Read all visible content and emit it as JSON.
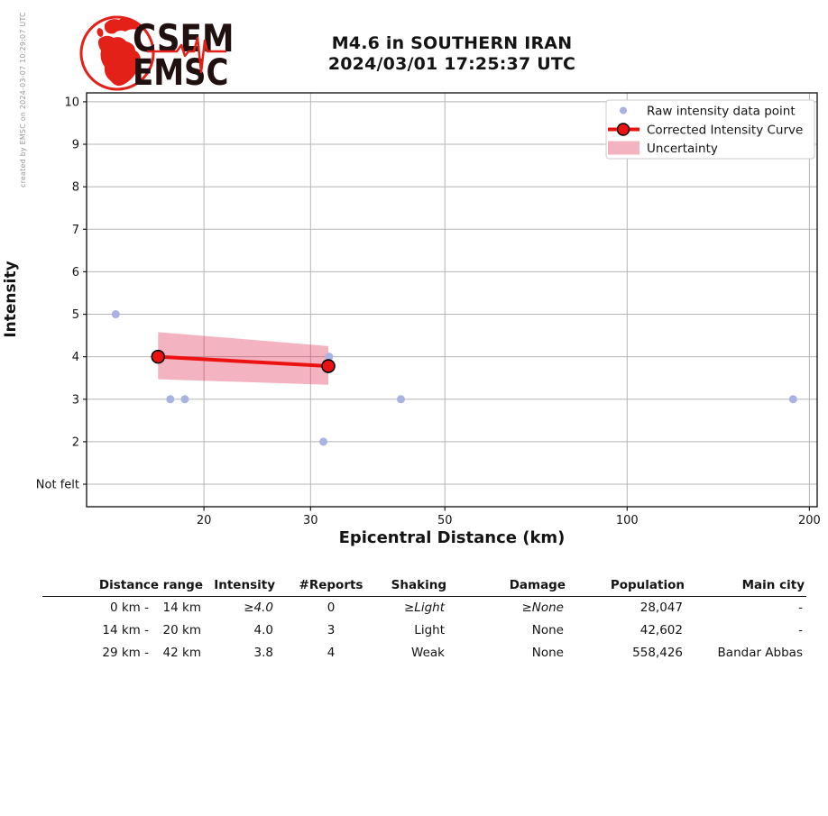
{
  "credit": "created by EMSC on 2024-03-07 10:29:07 UTC",
  "logo": {
    "top": "CSEM",
    "bottom": "EMSC"
  },
  "title": {
    "line1": "M4.6 in SOUTHERN IRAN",
    "line2": "2024/03/01 17:25:37 UTC"
  },
  "chart_data": {
    "type": "scatter",
    "xlabel": "Epicentral Distance (km)",
    "ylabel": "Intensity",
    "x_scale": "log",
    "xlim": [
      12.8,
      206
    ],
    "ylim": [
      0.47,
      10.21
    ],
    "x_ticks": [
      "20",
      "30",
      "50",
      "100",
      "200"
    ],
    "y_ticks": [
      {
        "value": 1,
        "label": "Not felt"
      },
      {
        "value": 2,
        "label": "2"
      },
      {
        "value": 3,
        "label": "3"
      },
      {
        "value": 4,
        "label": "4"
      },
      {
        "value": 5,
        "label": "5"
      },
      {
        "value": 6,
        "label": "6"
      },
      {
        "value": 7,
        "label": "7"
      },
      {
        "value": 8,
        "label": "8"
      },
      {
        "value": 9,
        "label": "9"
      },
      {
        "value": 10,
        "label": "10"
      }
    ],
    "grid": true,
    "legend_position": "upper right",
    "series": [
      {
        "name": "Raw intensity data point",
        "type": "scatter",
        "points": [
          {
            "x": 14.3,
            "y": 5
          },
          {
            "x": 17.6,
            "y": 3
          },
          {
            "x": 18.6,
            "y": 3
          },
          {
            "x": 31.5,
            "y": 2
          },
          {
            "x": 32.2,
            "y": 4
          },
          {
            "x": 42.3,
            "y": 3
          },
          {
            "x": 188,
            "y": 3
          }
        ]
      },
      {
        "name": "Corrected Intensity Curve",
        "type": "line",
        "points": [
          {
            "x": 16.8,
            "y": 4.0
          },
          {
            "x": 32.1,
            "y": 3.78
          }
        ]
      },
      {
        "name": "Uncertainty",
        "type": "band",
        "upper": [
          {
            "x": 16.8,
            "y": 4.58
          },
          {
            "x": 32.1,
            "y": 4.25
          }
        ],
        "lower": [
          {
            "x": 16.8,
            "y": 3.47
          },
          {
            "x": 32.1,
            "y": 3.34
          }
        ]
      }
    ],
    "legend": [
      {
        "swatch": "point",
        "label": "Raw intensity data point"
      },
      {
        "swatch": "line",
        "label": "Corrected Intensity Curve"
      },
      {
        "swatch": "patch",
        "label": "Uncertainty"
      }
    ]
  },
  "colors": {
    "brand_red": "#e32119",
    "logo_text": "#201010",
    "raw_point": "#a9b3e3",
    "curve_red": "#ec1212",
    "band_pink": "rgba(220,20,60,0.32)",
    "grid_gray": "#b5b5b5",
    "axis_dark": "#1c1c1c",
    "credit_gray": "#999999"
  },
  "table": {
    "columns": [
      {
        "key": "range",
        "label": "Distance range",
        "align": "right"
      },
      {
        "key": "intensity",
        "label": "Intensity",
        "align": "right"
      },
      {
        "key": "reports",
        "label": "#Reports",
        "align": "center"
      },
      {
        "key": "shaking",
        "label": "Shaking",
        "align": "right"
      },
      {
        "key": "damage",
        "label": "Damage",
        "align": "right"
      },
      {
        "key": "population",
        "label": "Population",
        "align": "right"
      },
      {
        "key": "city",
        "label": "Main city",
        "align": "right"
      }
    ],
    "rows": [
      {
        "range_from": "0 km -",
        "range_to": "14 km",
        "intensity": "≥4.0",
        "reports": "0",
        "shaking": "≥Light",
        "damage": "≥None",
        "population": "28,047",
        "city": "-",
        "estimated": true
      },
      {
        "range_from": "14 km -",
        "range_to": "20 km",
        "intensity": "4.0",
        "reports": "3",
        "shaking": "Light",
        "damage": "None",
        "population": "42,602",
        "city": "-",
        "estimated": false
      },
      {
        "range_from": "29 km -",
        "range_to": "42 km",
        "intensity": "3.8",
        "reports": "4",
        "shaking": "Weak",
        "damage": "None",
        "population": "558,426",
        "city": "Bandar Abbas",
        "estimated": false
      }
    ]
  }
}
